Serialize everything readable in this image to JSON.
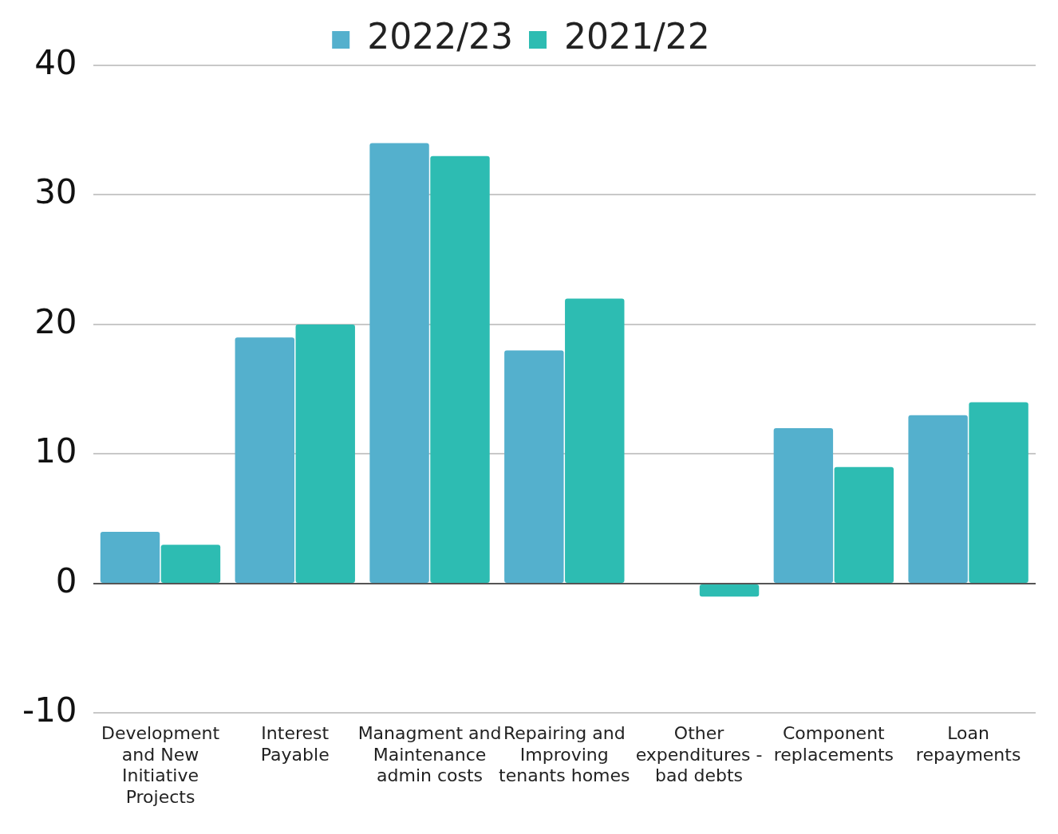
{
  "chart_data": {
    "type": "bar",
    "categories": [
      "Development and New Initiative Projects",
      "Interest Payable",
      "Managment and Maintenance admin costs",
      "Repairing and Improving tenants homes",
      "Other expenditures - bad debts",
      "Component replacements",
      "Loan repayments"
    ],
    "series": [
      {
        "name": "2022/23",
        "color": "#54b0cd",
        "values": [
          4,
          19,
          34,
          18,
          0,
          12,
          13
        ]
      },
      {
        "name": "2021/22",
        "color": "#2dbcb2",
        "values": [
          3,
          20,
          33,
          22,
          -1,
          9,
          14
        ]
      }
    ],
    "ylim": [
      -10,
      40
    ],
    "yticks": [
      -10,
      0,
      10,
      20,
      30,
      40
    ],
    "grid": "y",
    "legend": "top"
  }
}
